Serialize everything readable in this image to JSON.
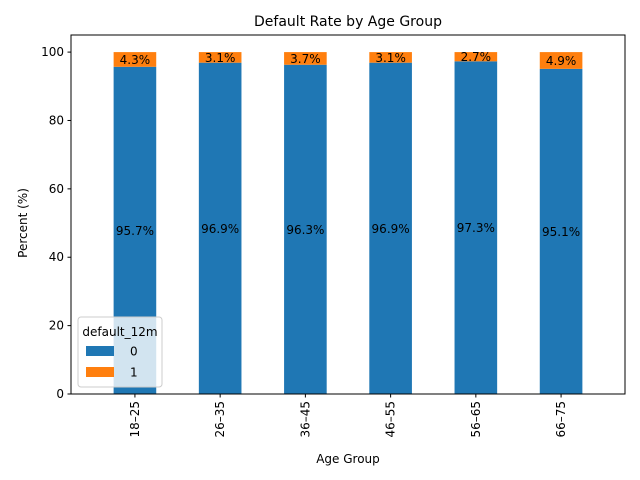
{
  "chart_data": {
    "type": "bar",
    "stacked": true,
    "title": "Default Rate by Age Group",
    "xlabel": "Age Group",
    "ylabel": "Percent (%)",
    "ylim": [
      0,
      105
    ],
    "yticks": [
      "0",
      "20",
      "40",
      "60",
      "80",
      "100"
    ],
    "categories": [
      "18–25",
      "26–35",
      "36–45",
      "46–55",
      "56–65",
      "66–75"
    ],
    "series": [
      {
        "name": "0",
        "color": "#1f77b4",
        "values": [
          95.7,
          96.9,
          96.3,
          96.9,
          97.3,
          95.1
        ],
        "labels": [
          "95.7%",
          "96.9%",
          "96.3%",
          "96.9%",
          "97.3%",
          "95.1%"
        ]
      },
      {
        "name": "1",
        "color": "#ff7f0e",
        "values": [
          4.3,
          3.1,
          3.7,
          3.1,
          2.7,
          4.9
        ],
        "labels": [
          "4.3%",
          "3.1%",
          "3.7%",
          "3.1%",
          "2.7%",
          "4.9%"
        ]
      }
    ],
    "legend": {
      "title": "default_12m",
      "position": "lower-left"
    },
    "grid": false
  }
}
